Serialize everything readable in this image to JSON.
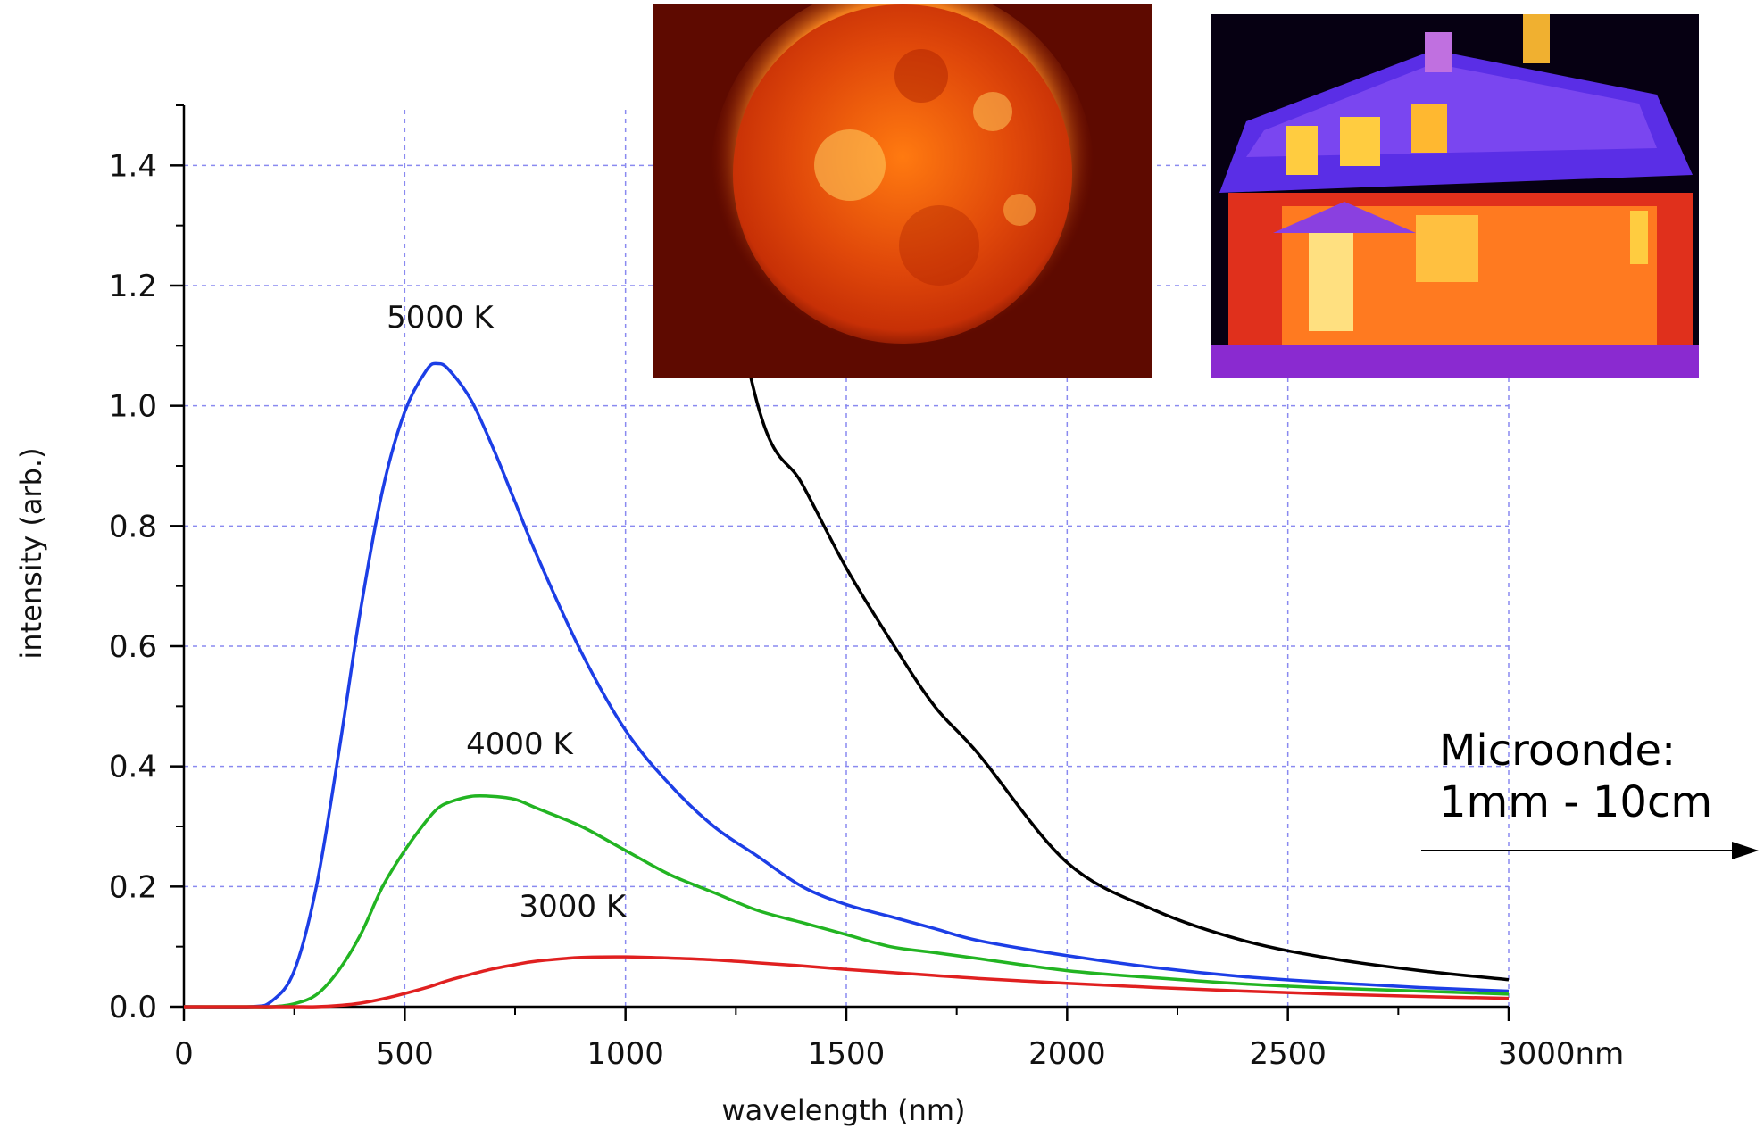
{
  "chart_data": {
    "type": "line",
    "title": "",
    "xlabel": "wavelength (nm)",
    "ylabel": "intensity (arb.)",
    "xlim": [
      0,
      3000
    ],
    "ylim": [
      0,
      1.5
    ],
    "x_ticks": [
      "0",
      "500",
      "1000",
      "1500",
      "2000",
      "2500",
      "3000nm"
    ],
    "y_ticks": [
      "0.0",
      "0.2",
      "0.4",
      "0.6",
      "0.8",
      "1.0",
      "1.2",
      "1.4"
    ],
    "grid": true,
    "x": [
      0,
      150,
      200,
      250,
      300,
      350,
      400,
      450,
      500,
      550,
      575,
      600,
      650,
      700,
      750,
      800,
      900,
      1000,
      1100,
      1200,
      1300,
      1400,
      1500,
      1600,
      1700,
      1800,
      2000,
      2200,
      2400,
      2600,
      2800,
      3000
    ],
    "series": [
      {
        "name": "",
        "color": "#000000",
        "y": [
          null,
          null,
          null,
          null,
          null,
          null,
          null,
          null,
          null,
          null,
          null,
          null,
          null,
          null,
          null,
          null,
          null,
          null,
          null,
          null,
          1.0,
          0.87,
          0.73,
          0.61,
          0.5,
          0.42,
          0.24,
          0.16,
          0.11,
          0.08,
          0.06,
          0.045
        ]
      },
      {
        "name": "",
        "color": "#1c3ee6",
        "y": [
          0,
          0,
          0.01,
          0.06,
          0.2,
          0.42,
          0.66,
          0.86,
          0.99,
          1.06,
          1.07,
          1.06,
          1.01,
          0.93,
          0.84,
          0.75,
          0.59,
          0.46,
          0.37,
          0.3,
          0.25,
          0.2,
          0.17,
          0.15,
          0.13,
          0.11,
          0.085,
          0.065,
          0.05,
          0.04,
          0.032,
          0.026
        ]
      },
      {
        "name": "",
        "color": "#22b422",
        "y": [
          0,
          0,
          0,
          0.005,
          0.02,
          0.06,
          0.12,
          0.2,
          0.26,
          0.31,
          0.33,
          0.34,
          0.35,
          0.35,
          0.345,
          0.33,
          0.3,
          0.26,
          0.22,
          0.19,
          0.16,
          0.14,
          0.12,
          0.1,
          0.09,
          0.08,
          0.06,
          0.048,
          0.038,
          0.031,
          0.026,
          0.021
        ]
      },
      {
        "name": "",
        "color": "#e02020",
        "y": [
          0,
          0,
          0,
          0,
          0,
          0.002,
          0.006,
          0.013,
          0.022,
          0.032,
          0.038,
          0.044,
          0.054,
          0.063,
          0.07,
          0.076,
          0.082,
          0.083,
          0.081,
          0.078,
          0.073,
          0.068,
          0.062,
          0.057,
          0.052,
          0.047,
          0.039,
          0.032,
          0.026,
          0.021,
          0.017,
          0.014
        ]
      }
    ],
    "annotations": [
      {
        "text": "5000 K",
        "x": 580,
        "y": 1.13
      },
      {
        "text": "4000 K",
        "x": 760,
        "y": 0.42
      },
      {
        "text": "3000 K",
        "x": 880,
        "y": 0.15
      }
    ]
  },
  "note_lines": [
    "Microonde:",
    "1mm - 10cm"
  ],
  "photos": [
    {
      "icon": "sun-thermal-photo"
    },
    {
      "icon": "house-infrared-photo"
    }
  ]
}
